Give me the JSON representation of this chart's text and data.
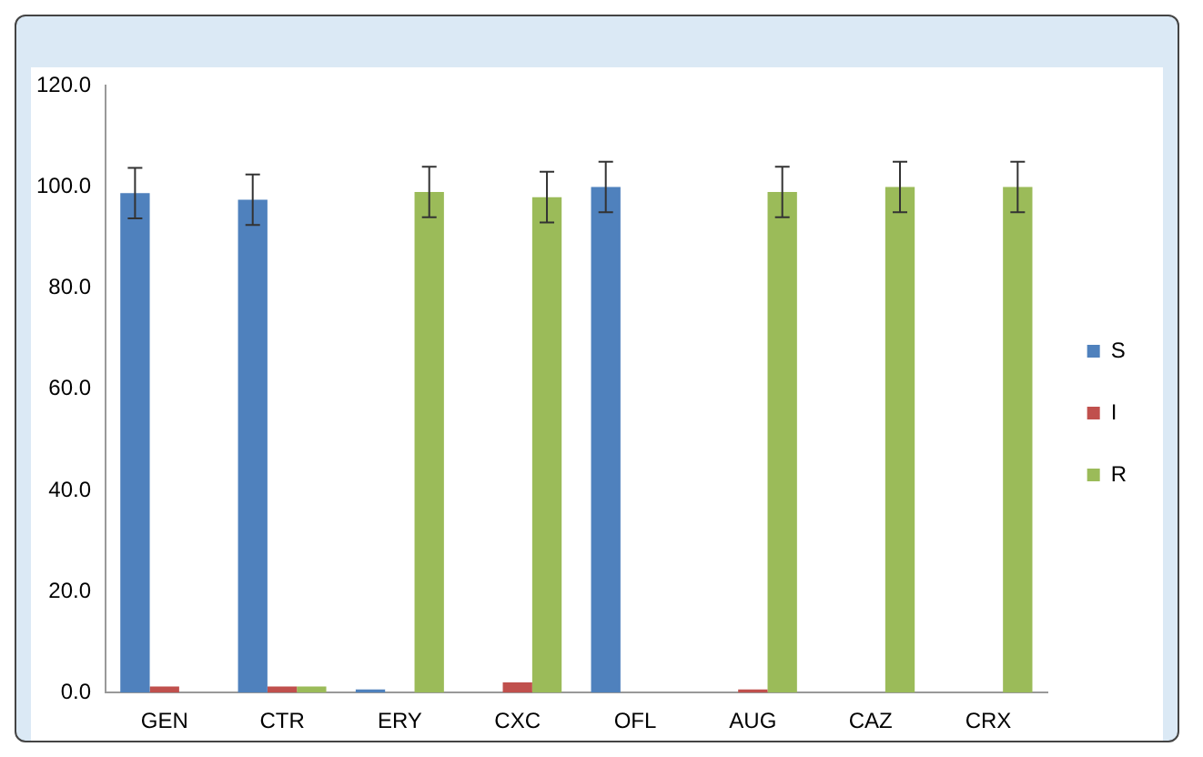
{
  "chart_data": {
    "type": "bar",
    "categories": [
      "GEN",
      "CTR",
      "ERY",
      "CXC",
      "OFL",
      "AUG",
      "CAZ",
      "CRX"
    ],
    "series": [
      {
        "name": "S",
        "color": "#4f81bd",
        "values": [
          98.8,
          97.5,
          0.6,
          null,
          100,
          null,
          null,
          null
        ],
        "errors": [
          5,
          5,
          null,
          null,
          5,
          null,
          null,
          null
        ]
      },
      {
        "name": "I",
        "color": "#c0504d",
        "values": [
          1.2,
          1.2,
          null,
          2.0,
          null,
          0.6,
          null,
          null
        ]
      },
      {
        "name": "R",
        "color": "#9bbb59",
        "values": [
          null,
          1.2,
          99,
          98,
          null,
          99,
          100,
          100
        ],
        "errors": [
          null,
          null,
          5,
          5,
          null,
          5,
          5,
          5
        ]
      }
    ],
    "ylim": [
      0,
      120
    ],
    "yticks": [
      {
        "value": 0,
        "label": "0.0"
      },
      {
        "value": 20,
        "label": "20.0"
      },
      {
        "value": 40,
        "label": "40.0"
      },
      {
        "value": 60,
        "label": "60.0"
      },
      {
        "value": 80,
        "label": "80.0"
      },
      {
        "value": 100,
        "label": "100.0"
      },
      {
        "value": 120,
        "label": "120.0"
      }
    ],
    "grid": false,
    "legend": "right"
  }
}
